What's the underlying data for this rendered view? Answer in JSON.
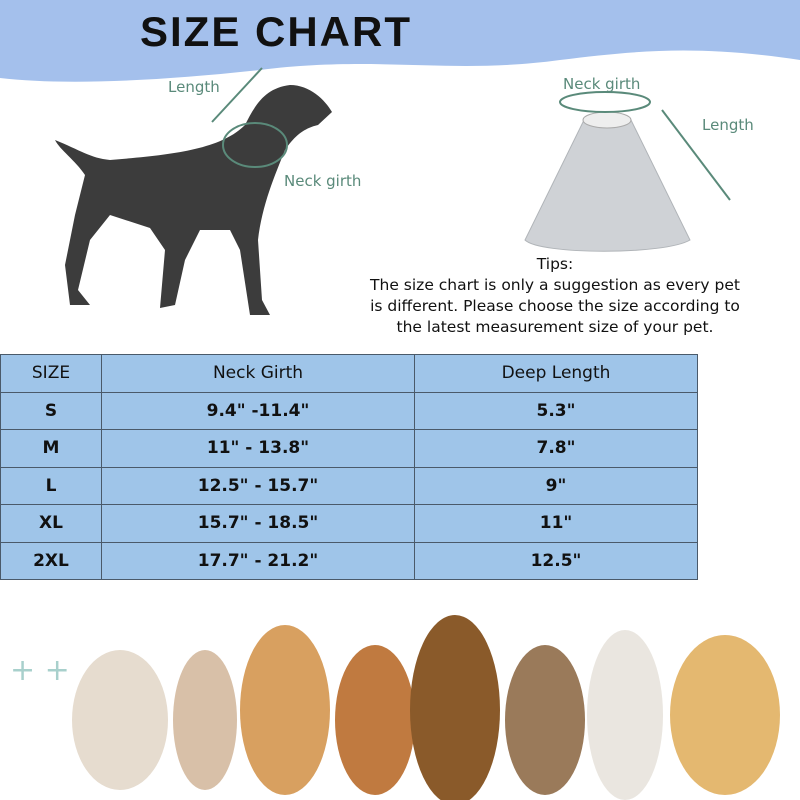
{
  "title": "SIZE CHART",
  "dog_labels": {
    "length": "Length",
    "neck_girth": "Neck girth"
  },
  "cone_labels": {
    "neck_girth": "Neck girth",
    "length": "Length"
  },
  "tips": {
    "heading": "Tips:",
    "lines": [
      "The size chart is only a suggestion as every pet",
      "is different. Please choose the size according to",
      "the latest measurement size of your pet."
    ]
  },
  "table": {
    "headers": [
      "SIZE",
      "Neck Girth",
      "Deep Length"
    ],
    "rows": [
      [
        "S",
        "9.4\" -11.4\"",
        "5.3\""
      ],
      [
        "M",
        "11\" - 13.8\"",
        "7.8\""
      ],
      [
        "L",
        "12.5\" - 15.7\"",
        "9\""
      ],
      [
        "XL",
        "15.7\" - 18.5\"",
        "11\""
      ],
      [
        "2XL",
        "17.7\" - 21.2\"",
        "12.5\""
      ]
    ]
  },
  "colors": {
    "header_bg": "#a4c0ec",
    "table_bg": "#9fc5e9",
    "label": "#5a8a7a"
  }
}
